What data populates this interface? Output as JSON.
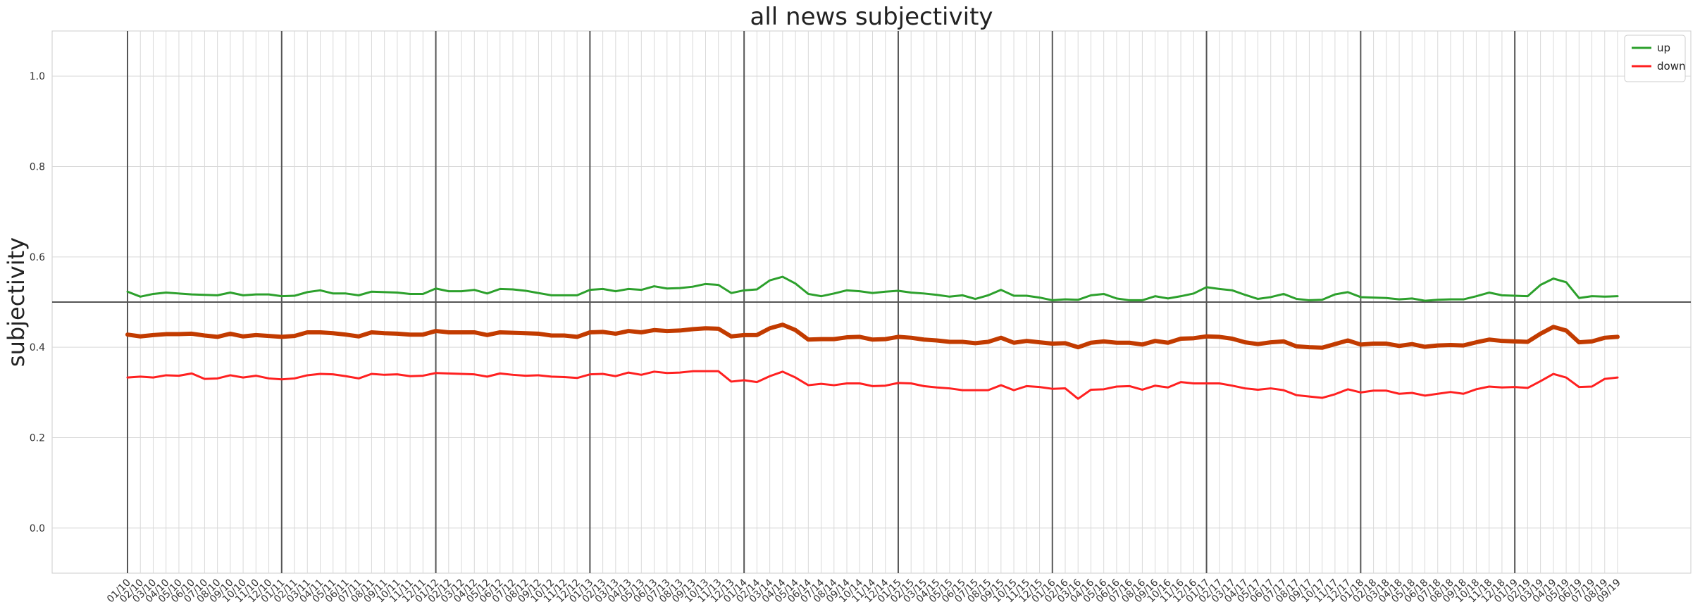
{
  "chart_data": {
    "type": "line",
    "title": "all news subjectivity",
    "xlabel": "",
    "ylabel": "subjectivity",
    "ylim": [
      -0.1,
      1.1
    ],
    "yticks": [
      "0.0",
      "0.2",
      "0.4",
      "0.6",
      "0.8",
      "1.0"
    ],
    "yticks_values": [
      0.0,
      0.2,
      0.4,
      0.6,
      0.8,
      1.0
    ],
    "grid": true,
    "legend_position": "top-right",
    "reference_line": 0.5,
    "year_markers": [
      "01/10",
      "01/11",
      "01/12",
      "01/13",
      "01/14",
      "01/15",
      "01/16",
      "01/17",
      "01/18",
      "01/19"
    ],
    "x": [
      "01/10",
      "02/10",
      "03/10",
      "04/10",
      "05/10",
      "06/10",
      "07/10",
      "08/10",
      "09/10",
      "10/10",
      "11/10",
      "12/10",
      "01/11",
      "02/11",
      "03/11",
      "04/11",
      "05/11",
      "06/11",
      "07/11",
      "08/11",
      "09/11",
      "10/11",
      "11/11",
      "12/11",
      "01/12",
      "02/12",
      "03/12",
      "04/12",
      "05/12",
      "06/12",
      "07/12",
      "08/12",
      "09/12",
      "10/12",
      "11/12",
      "12/12",
      "01/13",
      "02/13",
      "03/13",
      "04/13",
      "05/13",
      "06/13",
      "07/13",
      "08/13",
      "09/13",
      "10/13",
      "11/13",
      "12/13",
      "01/14",
      "02/14",
      "03/14",
      "04/14",
      "05/14",
      "06/14",
      "07/14",
      "08/14",
      "09/14",
      "10/14",
      "11/14",
      "12/14",
      "01/15",
      "02/15",
      "03/15",
      "04/15",
      "05/15",
      "06/15",
      "07/15",
      "08/15",
      "09/15",
      "10/15",
      "11/15",
      "12/15",
      "01/16",
      "02/16",
      "03/16",
      "04/16",
      "05/16",
      "06/16",
      "07/16",
      "08/16",
      "09/16",
      "10/16",
      "11/16",
      "12/16",
      "01/17",
      "02/17",
      "03/17",
      "04/17",
      "05/17",
      "06/17",
      "07/17",
      "08/17",
      "09/17",
      "10/17",
      "11/17",
      "12/17",
      "01/18",
      "02/18",
      "03/18",
      "04/18",
      "05/18",
      "06/18",
      "07/18",
      "08/18",
      "09/18",
      "10/18",
      "11/18",
      "12/18",
      "01/19",
      "02/19",
      "03/19",
      "04/19",
      "05/19",
      "06/19",
      "07/19",
      "08/19",
      "09/19"
    ],
    "series": [
      {
        "name": "up",
        "color": "#2ca02c",
        "values": [
          0.523,
          0.512,
          0.518,
          0.521,
          0.519,
          0.517,
          0.516,
          0.515,
          0.521,
          0.515,
          0.517,
          0.517,
          0.513,
          0.514,
          0.522,
          0.526,
          0.519,
          0.519,
          0.515,
          0.523,
          0.522,
          0.521,
          0.518,
          0.518,
          0.53,
          0.524,
          0.524,
          0.527,
          0.519,
          0.529,
          0.528,
          0.525,
          0.52,
          0.515,
          0.515,
          0.515,
          0.527,
          0.529,
          0.524,
          0.529,
          0.527,
          0.535,
          0.53,
          0.531,
          0.534,
          0.54,
          0.538,
          0.52,
          0.526,
          0.528,
          0.548,
          0.556,
          0.541,
          0.518,
          0.513,
          0.519,
          0.526,
          0.524,
          0.52,
          0.523,
          0.525,
          0.521,
          0.519,
          0.516,
          0.512,
          0.515,
          0.507,
          0.515,
          0.527,
          0.514,
          0.514,
          0.51,
          0.504,
          0.506,
          0.505,
          0.515,
          0.518,
          0.508,
          0.504,
          0.504,
          0.513,
          0.508,
          0.513,
          0.519,
          0.533,
          0.529,
          0.526,
          0.516,
          0.507,
          0.511,
          0.518,
          0.507,
          0.504,
          0.505,
          0.517,
          0.522,
          0.511,
          0.51,
          0.509,
          0.506,
          0.508,
          0.503,
          0.505,
          0.506,
          0.506,
          0.513,
          0.521,
          0.515,
          0.514,
          0.513,
          0.538,
          0.552,
          0.544,
          0.509,
          0.513,
          0.512,
          0.513
        ]
      },
      {
        "name": "down",
        "color": "#ff2020",
        "values": [
          0.333,
          0.335,
          0.333,
          0.338,
          0.337,
          0.342,
          0.33,
          0.331,
          0.338,
          0.333,
          0.337,
          0.331,
          0.329,
          0.331,
          0.338,
          0.341,
          0.34,
          0.336,
          0.331,
          0.341,
          0.339,
          0.34,
          0.336,
          0.337,
          0.343,
          0.342,
          0.341,
          0.34,
          0.335,
          0.342,
          0.339,
          0.337,
          0.338,
          0.335,
          0.334,
          0.332,
          0.34,
          0.341,
          0.336,
          0.344,
          0.339,
          0.346,
          0.343,
          0.344,
          0.347,
          0.347,
          0.347,
          0.324,
          0.327,
          0.323,
          0.336,
          0.346,
          0.333,
          0.316,
          0.319,
          0.316,
          0.32,
          0.32,
          0.314,
          0.315,
          0.321,
          0.32,
          0.314,
          0.311,
          0.309,
          0.305,
          0.305,
          0.305,
          0.316,
          0.305,
          0.314,
          0.312,
          0.308,
          0.309,
          0.286,
          0.306,
          0.307,
          0.313,
          0.314,
          0.306,
          0.315,
          0.311,
          0.323,
          0.32,
          0.32,
          0.32,
          0.315,
          0.309,
          0.306,
          0.309,
          0.305,
          0.294,
          0.291,
          0.288,
          0.296,
          0.307,
          0.3,
          0.304,
          0.304,
          0.297,
          0.299,
          0.293,
          0.297,
          0.301,
          0.297,
          0.307,
          0.313,
          0.311,
          0.312,
          0.31,
          0.325,
          0.341,
          0.333,
          0.312,
          0.313,
          0.33,
          0.333
        ]
      },
      {
        "name": "",
        "color": "#c23b00",
        "values": [
          0.428,
          0.424,
          0.427,
          0.429,
          0.429,
          0.43,
          0.426,
          0.423,
          0.43,
          0.424,
          0.427,
          0.425,
          0.423,
          0.425,
          0.433,
          0.433,
          0.431,
          0.428,
          0.424,
          0.433,
          0.431,
          0.43,
          0.428,
          0.428,
          0.436,
          0.433,
          0.433,
          0.433,
          0.427,
          0.433,
          0.432,
          0.431,
          0.43,
          0.426,
          0.426,
          0.423,
          0.433,
          0.434,
          0.43,
          0.436,
          0.433,
          0.438,
          0.436,
          0.437,
          0.44,
          0.442,
          0.441,
          0.424,
          0.427,
          0.427,
          0.442,
          0.45,
          0.438,
          0.417,
          0.418,
          0.418,
          0.422,
          0.423,
          0.417,
          0.418,
          0.423,
          0.421,
          0.417,
          0.415,
          0.412,
          0.412,
          0.409,
          0.412,
          0.421,
          0.41,
          0.414,
          0.411,
          0.408,
          0.409,
          0.4,
          0.41,
          0.413,
          0.41,
          0.41,
          0.406,
          0.414,
          0.41,
          0.419,
          0.42,
          0.424,
          0.423,
          0.419,
          0.411,
          0.407,
          0.411,
          0.413,
          0.402,
          0.4,
          0.399,
          0.407,
          0.415,
          0.406,
          0.408,
          0.408,
          0.403,
          0.407,
          0.401,
          0.404,
          0.405,
          0.404,
          0.411,
          0.417,
          0.414,
          0.413,
          0.412,
          0.43,
          0.445,
          0.437,
          0.411,
          0.413,
          0.421,
          0.423
        ]
      }
    ]
  }
}
